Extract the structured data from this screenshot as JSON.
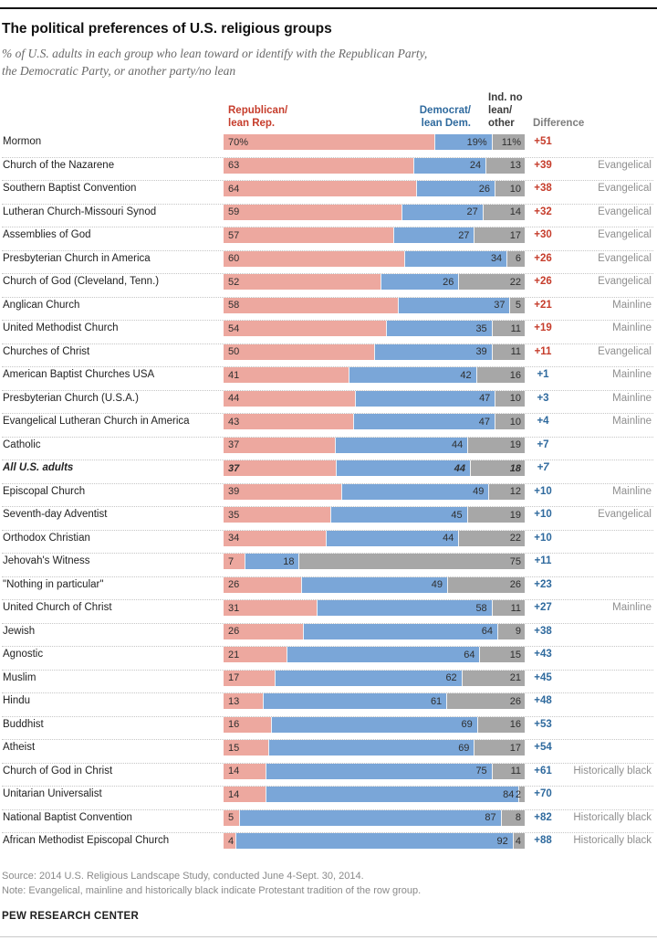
{
  "header": {
    "title": "The political preferences of U.S. religious groups",
    "subtitle_line1": "% of U.S. adults in each group who lean toward or identify with the Republican Party,",
    "subtitle_line2": "the Democratic Party, or another party/no lean"
  },
  "columns": {
    "republican": "Republican/\nlean Rep.",
    "democrat": "Democrat/\nlean Dem.",
    "independent": "Ind. no\nlean/\nother",
    "difference": "Difference"
  },
  "colors": {
    "rep_bar": "#eda89f",
    "dem_bar": "#7aa6d8",
    "ind_bar": "#a7a7a7",
    "rep_text": "#c63d2c",
    "dem_text": "#2f6a9e"
  },
  "chart_data": {
    "type": "bar",
    "orientation": "horizontal-stacked",
    "title": "The political preferences of U.S. religious groups",
    "units": "%",
    "xlim": [
      0,
      100
    ],
    "series": [
      "Republican/lean Rep.",
      "Democrat/lean Dem.",
      "Ind. no lean/other"
    ],
    "rows": [
      {
        "label": "Mormon",
        "rep": 70,
        "dem": 19,
        "ind": 11,
        "rep_label": "70%",
        "dem_label": "19%",
        "ind_label": "11%",
        "diff": "+51",
        "lean": "rep",
        "tradition": "",
        "emphasis": false
      },
      {
        "label": "Church of the Nazarene",
        "rep": 63,
        "dem": 24,
        "ind": 13,
        "rep_label": "63",
        "dem_label": "24",
        "ind_label": "13",
        "diff": "+39",
        "lean": "rep",
        "tradition": "Evangelical",
        "emphasis": false
      },
      {
        "label": "Southern Baptist Convention",
        "rep": 64,
        "dem": 26,
        "ind": 10,
        "rep_label": "64",
        "dem_label": "26",
        "ind_label": "10",
        "diff": "+38",
        "lean": "rep",
        "tradition": "Evangelical",
        "emphasis": false
      },
      {
        "label": "Lutheran Church-Missouri Synod",
        "rep": 59,
        "dem": 27,
        "ind": 14,
        "rep_label": "59",
        "dem_label": "27",
        "ind_label": "14",
        "diff": "+32",
        "lean": "rep",
        "tradition": "Evangelical",
        "emphasis": false
      },
      {
        "label": "Assemblies of God",
        "rep": 57,
        "dem": 27,
        "ind": 17,
        "rep_label": "57",
        "dem_label": "27",
        "ind_label": "17",
        "diff": "+30",
        "lean": "rep",
        "tradition": "Evangelical",
        "emphasis": false
      },
      {
        "label": "Presbyterian Church in America",
        "rep": 60,
        "dem": 34,
        "ind": 6,
        "rep_label": "60",
        "dem_label": "34",
        "ind_label": "6",
        "diff": "+26",
        "lean": "rep",
        "tradition": "Evangelical",
        "emphasis": false
      },
      {
        "label": "Church of God (Cleveland, Tenn.)",
        "rep": 52,
        "dem": 26,
        "ind": 22,
        "rep_label": "52",
        "dem_label": "26",
        "ind_label": "22",
        "diff": "+26",
        "lean": "rep",
        "tradition": "Evangelical",
        "emphasis": false
      },
      {
        "label": "Anglican Church",
        "rep": 58,
        "dem": 37,
        "ind": 5,
        "rep_label": "58",
        "dem_label": "37",
        "ind_label": "5",
        "diff": "+21",
        "lean": "rep",
        "tradition": "Mainline",
        "emphasis": false
      },
      {
        "label": "United Methodist Church",
        "rep": 54,
        "dem": 35,
        "ind": 11,
        "rep_label": "54",
        "dem_label": "35",
        "ind_label": "11",
        "diff": "+19",
        "lean": "rep",
        "tradition": "Mainline",
        "emphasis": false
      },
      {
        "label": "Churches of Christ",
        "rep": 50,
        "dem": 39,
        "ind": 11,
        "rep_label": "50",
        "dem_label": "39",
        "ind_label": "11",
        "diff": "+11",
        "lean": "rep",
        "tradition": "Evangelical",
        "emphasis": false
      },
      {
        "label": "American Baptist Churches USA",
        "rep": 41,
        "dem": 42,
        "ind": 16,
        "rep_label": "41",
        "dem_label": "42",
        "ind_label": "16",
        "diff": "+1",
        "lean": "dem",
        "tradition": "Mainline",
        "emphasis": false
      },
      {
        "label": "Presbyterian Church (U.S.A.)",
        "rep": 44,
        "dem": 47,
        "ind": 10,
        "rep_label": "44",
        "dem_label": "47",
        "ind_label": "10",
        "diff": "+3",
        "lean": "dem",
        "tradition": "Mainline",
        "emphasis": false
      },
      {
        "label": "Evangelical Lutheran Church in America",
        "rep": 43,
        "dem": 47,
        "ind": 10,
        "rep_label": "43",
        "dem_label": "47",
        "ind_label": "10",
        "diff": "+4",
        "lean": "dem",
        "tradition": "Mainline",
        "emphasis": false
      },
      {
        "label": "Catholic",
        "rep": 37,
        "dem": 44,
        "ind": 19,
        "rep_label": "37",
        "dem_label": "44",
        "ind_label": "19",
        "diff": "+7",
        "lean": "dem",
        "tradition": "",
        "emphasis": false
      },
      {
        "label": "All U.S. adults",
        "rep": 37,
        "dem": 44,
        "ind": 18,
        "rep_label": "37",
        "dem_label": "44",
        "ind_label": "18",
        "diff": "+7",
        "lean": "dem",
        "tradition": "",
        "emphasis": true
      },
      {
        "label": "Episcopal Church",
        "rep": 39,
        "dem": 49,
        "ind": 12,
        "rep_label": "39",
        "dem_label": "49",
        "ind_label": "12",
        "diff": "+10",
        "lean": "dem",
        "tradition": "Mainline",
        "emphasis": false
      },
      {
        "label": "Seventh-day Adventist",
        "rep": 35,
        "dem": 45,
        "ind": 19,
        "rep_label": "35",
        "dem_label": "45",
        "ind_label": "19",
        "diff": "+10",
        "lean": "dem",
        "tradition": "Evangelical",
        "emphasis": false
      },
      {
        "label": "Orthodox Christian",
        "rep": 34,
        "dem": 44,
        "ind": 22,
        "rep_label": "34",
        "dem_label": "44",
        "ind_label": "22",
        "diff": "+10",
        "lean": "dem",
        "tradition": "",
        "emphasis": false
      },
      {
        "label": "Jehovah's Witness",
        "rep": 7,
        "dem": 18,
        "ind": 75,
        "rep_label": "7",
        "dem_label": "18",
        "ind_label": "75",
        "diff": "+11",
        "lean": "dem",
        "tradition": "",
        "emphasis": false
      },
      {
        "label": "\"Nothing in particular\"",
        "rep": 26,
        "dem": 49,
        "ind": 26,
        "rep_label": "26",
        "dem_label": "49",
        "ind_label": "26",
        "diff": "+23",
        "lean": "dem",
        "tradition": "",
        "emphasis": false
      },
      {
        "label": "United Church of Christ",
        "rep": 31,
        "dem": 58,
        "ind": 11,
        "rep_label": "31",
        "dem_label": "58",
        "ind_label": "11",
        "diff": "+27",
        "lean": "dem",
        "tradition": "Mainline",
        "emphasis": false
      },
      {
        "label": "Jewish",
        "rep": 26,
        "dem": 64,
        "ind": 9,
        "rep_label": "26",
        "dem_label": "64",
        "ind_label": "9",
        "diff": "+38",
        "lean": "dem",
        "tradition": "",
        "emphasis": false
      },
      {
        "label": "Agnostic",
        "rep": 21,
        "dem": 64,
        "ind": 15,
        "rep_label": "21",
        "dem_label": "64",
        "ind_label": "15",
        "diff": "+43",
        "lean": "dem",
        "tradition": "",
        "emphasis": false
      },
      {
        "label": "Muslim",
        "rep": 17,
        "dem": 62,
        "ind": 21,
        "rep_label": "17",
        "dem_label": "62",
        "ind_label": "21",
        "diff": "+45",
        "lean": "dem",
        "tradition": "",
        "emphasis": false
      },
      {
        "label": "Hindu",
        "rep": 13,
        "dem": 61,
        "ind": 26,
        "rep_label": "13",
        "dem_label": "61",
        "ind_label": "26",
        "diff": "+48",
        "lean": "dem",
        "tradition": "",
        "emphasis": false
      },
      {
        "label": "Buddhist",
        "rep": 16,
        "dem": 69,
        "ind": 16,
        "rep_label": "16",
        "dem_label": "69",
        "ind_label": "16",
        "diff": "+53",
        "lean": "dem",
        "tradition": "",
        "emphasis": false
      },
      {
        "label": "Atheist",
        "rep": 15,
        "dem": 69,
        "ind": 17,
        "rep_label": "15",
        "dem_label": "69",
        "ind_label": "17",
        "diff": "+54",
        "lean": "dem",
        "tradition": "",
        "emphasis": false
      },
      {
        "label": "Church of God in Christ",
        "rep": 14,
        "dem": 75,
        "ind": 11,
        "rep_label": "14",
        "dem_label": "75",
        "ind_label": "11",
        "diff": "+61",
        "lean": "dem",
        "tradition": "Historically black",
        "emphasis": false
      },
      {
        "label": "Unitarian Universalist",
        "rep": 14,
        "dem": 84,
        "ind": 2,
        "rep_label": "14",
        "dem_label": "84",
        "ind_label": "2",
        "diff": "+70",
        "lean": "dem",
        "tradition": "",
        "emphasis": false
      },
      {
        "label": "National Baptist Convention",
        "rep": 5,
        "dem": 87,
        "ind": 8,
        "rep_label": "5",
        "dem_label": "87",
        "ind_label": "8",
        "diff": "+82",
        "lean": "dem",
        "tradition": "Historically black",
        "emphasis": false
      },
      {
        "label": "African Methodist Episcopal Church",
        "rep": 4,
        "dem": 92,
        "ind": 4,
        "rep_label": "4",
        "dem_label": "92",
        "ind_label": "4",
        "diff": "+88",
        "lean": "dem",
        "tradition": "Historically black",
        "emphasis": false
      }
    ]
  },
  "footer": {
    "source": "Source: 2014 U.S. Religious Landscape Study, conducted June 4-Sept. 30, 2014.",
    "note": "Note: Evangelical, mainline and historically black indicate Protestant tradition of the row group.",
    "brand": "PEW RESEARCH CENTER"
  }
}
